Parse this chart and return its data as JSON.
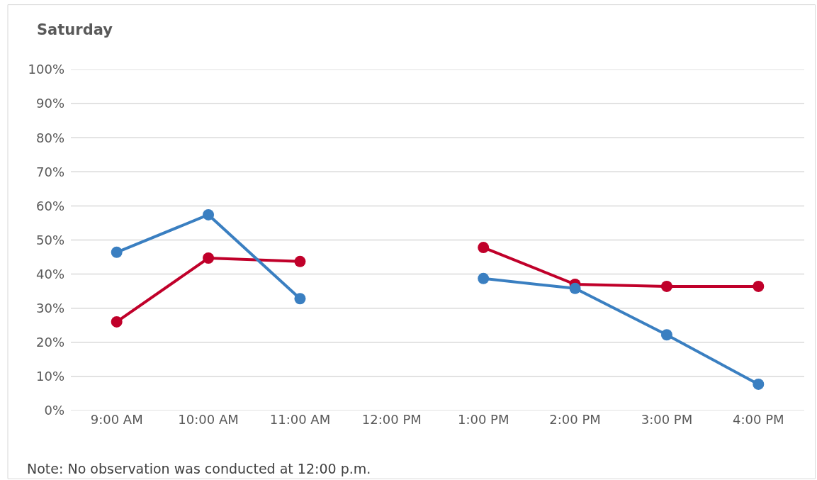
{
  "chart_data": {
    "type": "line",
    "title": "Saturday",
    "categories": [
      "9:00 AM",
      "10:00 AM",
      "11:00 AM",
      "12:00 PM",
      "1:00 PM",
      "2:00 PM",
      "3:00 PM",
      "4:00 PM"
    ],
    "series": [
      {
        "color": "#3a7fc1",
        "values": [
          46.4,
          57.4,
          32.8,
          null,
          38.7,
          35.8,
          22.2,
          7.7
        ]
      },
      {
        "color": "#c0002a",
        "values": [
          26.0,
          44.7,
          43.7,
          null,
          47.8,
          37.0,
          36.4,
          36.4
        ]
      }
    ],
    "ylim": [
      0,
      100
    ],
    "yticks": [
      {
        "value": 0,
        "label": "0%"
      },
      {
        "value": 10,
        "label": "10%"
      },
      {
        "value": 20,
        "label": "20%"
      },
      {
        "value": 30,
        "label": "30%"
      },
      {
        "value": 40,
        "label": "40%"
      },
      {
        "value": 50,
        "label": "50%"
      },
      {
        "value": 60,
        "label": "60%"
      },
      {
        "value": 70,
        "label": "70%"
      },
      {
        "value": 80,
        "label": "80%"
      },
      {
        "value": 90,
        "label": "90%"
      },
      {
        "value": 100,
        "label": "100%"
      }
    ],
    "grid": "y",
    "marker": "circle",
    "line_style": "solid",
    "annotations": [
      "Note: No observation was conducted at 12:00 p.m."
    ]
  }
}
